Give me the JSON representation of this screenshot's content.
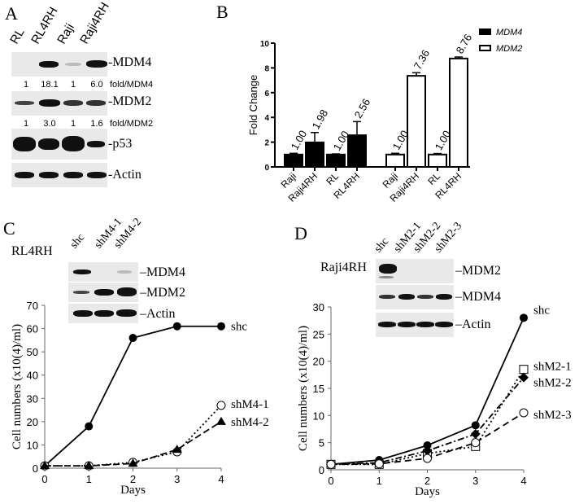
{
  "panelA": {
    "letter": "A",
    "lanes": [
      "RL",
      "RL4RH",
      "Raji",
      "Raji4RH"
    ],
    "blots": [
      {
        "label": "-MDM4",
        "quant": [
          "1",
          "18.1",
          "1",
          "6.0"
        ],
        "quant_label": "fold/MDM4"
      },
      {
        "label": "-MDM2",
        "quant": [
          "1",
          "3.0",
          "1",
          "1.6"
        ],
        "quant_label": "fold/MDM2"
      },
      {
        "label": "-p53"
      },
      {
        "label": "-Actin"
      }
    ]
  },
  "panelB": {
    "letter": "B"
  },
  "panelC": {
    "letter": "C",
    "cell_line": "RL4RH",
    "lanes": [
      "shc",
      "shM4-1",
      "shM4-2"
    ],
    "blots": [
      "–MDM4",
      "–MDM2",
      "–Actin"
    ]
  },
  "panelD": {
    "letter": "D",
    "cell_line": "Raji4RH",
    "lanes": [
      "shc",
      "shM2-1",
      "shM2-2",
      "shM2-3"
    ],
    "blots": [
      "–MDM2",
      "–MDM4",
      "–Actin"
    ]
  },
  "chart_data": [
    {
      "panel": "B",
      "type": "bar",
      "ylabel": "Fold Change",
      "ylim": [
        0,
        10
      ],
      "yticks": [
        0,
        2,
        4,
        6,
        8,
        10
      ],
      "legend": [
        "MDM4",
        "MDM2"
      ],
      "categories": [
        "Raji",
        "Raji4RH",
        "RL",
        "RL4RH"
      ],
      "series": [
        {
          "name": "MDM4",
          "color": "#000000",
          "values": [
            1.0,
            1.98,
            1.0,
            2.56
          ],
          "errors": [
            0.1,
            0.8,
            0.05,
            1.1
          ],
          "labels": [
            "1.00",
            "1.98",
            "1.00",
            "2.56"
          ]
        },
        {
          "name": "MDM2",
          "color": "#ffffff",
          "values": [
            1.0,
            7.36,
            1.0,
            8.76
          ],
          "errors": [
            0.1,
            0.25,
            0.08,
            0.12
          ],
          "labels": [
            "1.00",
            "7.36",
            "1.00",
            "8.76"
          ]
        }
      ]
    },
    {
      "panel": "C",
      "type": "line",
      "xlabel": "Days",
      "ylabel": "Cell numbers (x10(4)/ml)",
      "x": [
        0,
        1,
        2,
        3,
        4
      ],
      "ylim": [
        0,
        70
      ],
      "yticks": [
        0,
        10,
        20,
        30,
        40,
        50,
        60,
        70
      ],
      "series": [
        {
          "name": "shc",
          "values": [
            1,
            18,
            56,
            61,
            61
          ]
        },
        {
          "name": "shM4-1",
          "values": [
            1,
            1,
            2.5,
            7,
            27
          ]
        },
        {
          "name": "shM4-2",
          "values": [
            1,
            1,
            2,
            8,
            20
          ]
        }
      ]
    },
    {
      "panel": "D",
      "type": "line",
      "xlabel": "Days",
      "ylabel": "Cell numbers (x10(4)/ml)",
      "x": [
        0,
        1,
        2,
        3,
        4
      ],
      "ylim": [
        0,
        30
      ],
      "yticks": [
        0,
        5,
        10,
        15,
        20,
        25,
        30
      ],
      "series": [
        {
          "name": "shc",
          "values": [
            1,
            1.8,
            4.5,
            8.2,
            28
          ]
        },
        {
          "name": "shM2-1",
          "values": [
            1,
            1,
            3,
            4.3,
            18.5
          ]
        },
        {
          "name": "shM2-2",
          "values": [
            1,
            1.3,
            3.5,
            6.6,
            17
          ]
        },
        {
          "name": "shM2-3",
          "values": [
            1,
            1.1,
            2.1,
            5,
            10.5
          ]
        }
      ]
    }
  ]
}
